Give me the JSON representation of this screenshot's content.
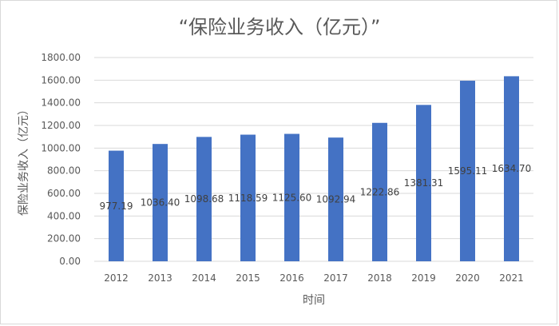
{
  "chart_data": {
    "type": "bar",
    "title": "“保险业务收入（亿元）”",
    "xlabel": "时间",
    "ylabel": "保险业务收入（亿元）",
    "categories": [
      "2012",
      "2013",
      "2014",
      "2015",
      "2016",
      "2017",
      "2018",
      "2019",
      "2020",
      "2021"
    ],
    "values": [
      977.19,
      1036.4,
      1098.68,
      1118.59,
      1125.6,
      1092.94,
      1222.86,
      1381.31,
      1595.11,
      1634.7
    ],
    "data_labels": [
      "977.19",
      "1036.40",
      "1098.68",
      "1118.59",
      "1125.60",
      "1092.94",
      "1222.86",
      "1381.31",
      "1595.11",
      "1634.70"
    ],
    "ylim": [
      0,
      1800
    ],
    "yticks": [
      "0.00",
      "200.00",
      "400.00",
      "600.00",
      "800.00",
      "1000.00",
      "1200.00",
      "1400.00",
      "1600.00",
      "1800.00"
    ],
    "grid": true,
    "legend": "none",
    "colors": {
      "bar": "#4472C4",
      "grid": "#D9D9D9",
      "text": "#595959"
    }
  }
}
